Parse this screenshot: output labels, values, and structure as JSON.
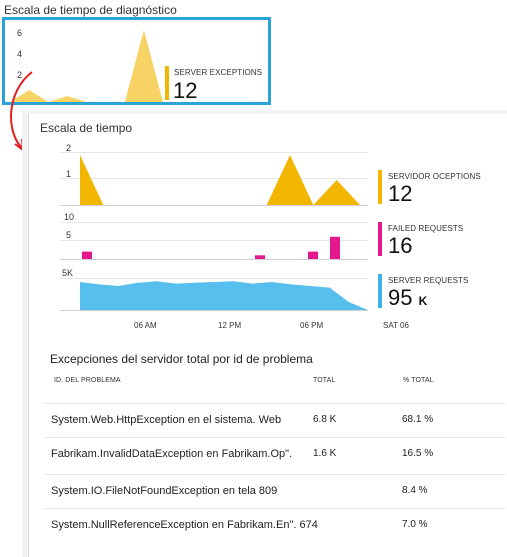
{
  "diagnostic": {
    "title": "Escala de tiempo de diagnóstico",
    "y_ticks": [
      "6",
      "4",
      "2"
    ],
    "kpi": {
      "label": "SERVER EXCEPTIONS",
      "value": "12",
      "color": "#f2b600"
    }
  },
  "timeline": {
    "title": "Escala de tiempo",
    "charts": [
      {
        "ticks": [
          "2",
          "1"
        ],
        "color": "#f2b600",
        "kpi_label": "SERVIDOR OCEPTIONS",
        "kpi_value": "12",
        "kpi_unit": ""
      },
      {
        "ticks": [
          "10",
          "5"
        ],
        "color": "#e3188d",
        "kpi_label": "FAILED REQUESTS",
        "kpi_value": "16",
        "kpi_unit": ""
      },
      {
        "ticks": [
          "5K"
        ],
        "color": "#3ab4ea",
        "kpi_label": "SERVER REQUESTS",
        "kpi_value": "95",
        "kpi_unit": "K"
      }
    ],
    "x_labels": [
      "06 AM",
      "12 PM",
      "06 PM",
      "SAT 06"
    ]
  },
  "table": {
    "title": "Excepciones del servidor total por id de problema",
    "columns": {
      "id": "ID. DEL PROBLEMA",
      "total": "TOTAL",
      "pct": "% TOTAL"
    },
    "rows": [
      {
        "id": "System.Web.HttpException en el sistema. Web",
        "total": "6.8 K",
        "pct": "68.1 %"
      },
      {
        "id": "Fabrikam.InvalidDataException en Fabrikam.Op\".",
        "total": "1.6 K",
        "pct": "16.5 %"
      },
      {
        "id": "System.IO.FileNotFoundException en tela 809",
        "total": "",
        "pct": "8.4 %"
      },
      {
        "id": "System.NullReferenceException en Fabrikam.En\". 674",
        "total": "",
        "pct": "7.0 %"
      }
    ]
  },
  "chart_data": [
    {
      "type": "area",
      "title": "",
      "series": [
        {
          "name": "SERVER EXCEPTIONS",
          "values": [
            0,
            1,
            0,
            0.5,
            0,
            0,
            0,
            6,
            0
          ]
        }
      ],
      "ylim": [
        0,
        6
      ]
    },
    {
      "type": "area",
      "series": [
        {
          "name": "SERVIDOR OCEPTIONS",
          "values": [
            2,
            0,
            0,
            0,
            0,
            0,
            0,
            0,
            0,
            2,
            0,
            1,
            0
          ]
        }
      ],
      "ylim": [
        0,
        2
      ]
    },
    {
      "type": "bar",
      "series": [
        {
          "name": "FAILED REQUESTS",
          "values": [
            2,
            0,
            0,
            1,
            0,
            0,
            2,
            6
          ]
        }
      ],
      "ylim": [
        0,
        10
      ]
    },
    {
      "type": "area",
      "series": [
        {
          "name": "SERVER REQUESTS",
          "values": [
            3.5,
            3.2,
            3.0,
            3.4,
            3.6,
            3.3,
            3.4,
            3.5,
            3.6,
            3.3,
            3.5,
            3.2,
            3.0,
            2.8,
            1.0,
            0
          ]
        }
      ],
      "ylim": [
        0,
        5
      ]
    }
  ]
}
